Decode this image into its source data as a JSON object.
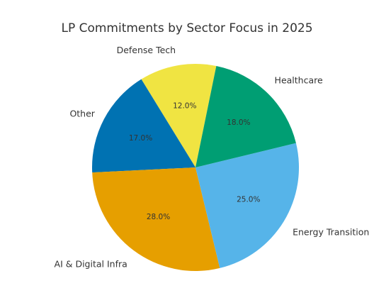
{
  "chart_data": {
    "type": "pie",
    "title": "LP Commitments by Sector Focus in 2025",
    "categories": [
      "Defense Tech",
      "Other",
      "AI & Digital Infra",
      "Energy Transition",
      "Healthcare"
    ],
    "values": [
      12.0,
      17.0,
      28.0,
      25.0,
      18.0
    ],
    "value_labels": [
      "12.0%",
      "17.0%",
      "28.0%",
      "25.0%",
      "18.0%"
    ],
    "colors": [
      "#F0E442",
      "#0072B2",
      "#E69F00",
      "#56B4E9",
      "#009E73"
    ],
    "start_angle_deg": 78.4,
    "direction": "counterclockwise",
    "legend": "none"
  }
}
